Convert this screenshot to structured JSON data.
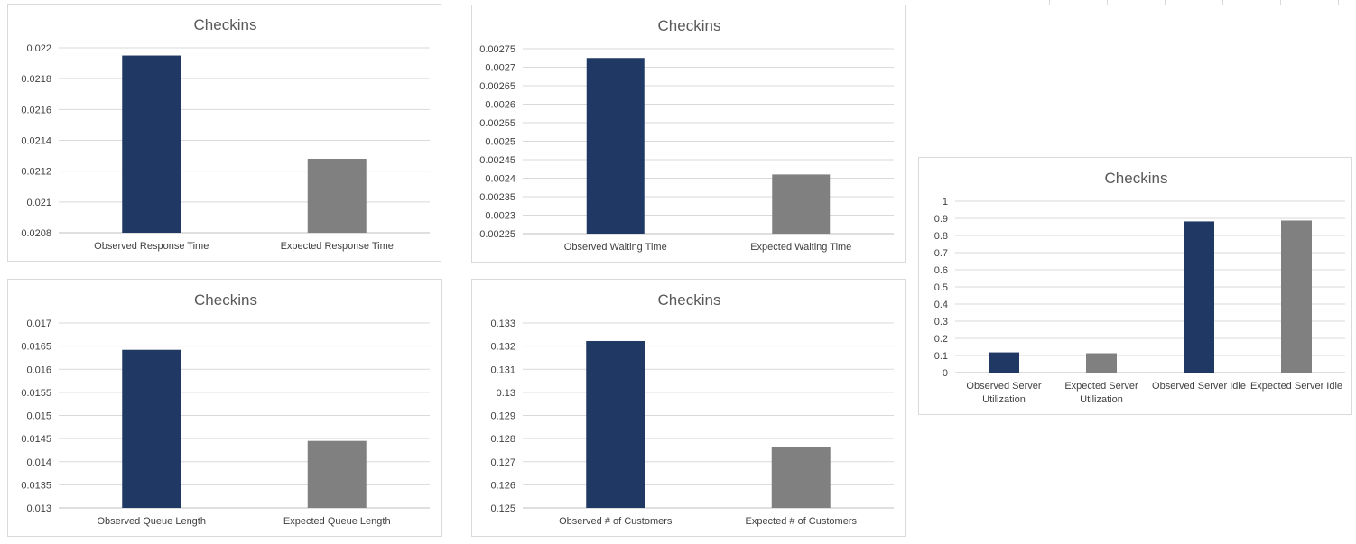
{
  "colors": {
    "observed": "#203864",
    "expected": "#808080"
  },
  "chart_data": [
    {
      "type": "bar",
      "title": "Checkins",
      "categories": [
        "Observed Response Time",
        "Expected Response Time"
      ],
      "values": [
        0.02195,
        0.02128
      ],
      "ylim": [
        0.0208,
        0.022
      ],
      "yticks": [
        "0.0208",
        "0.021",
        "0.0212",
        "0.0214",
        "0.0216",
        "0.0218",
        "0.022"
      ],
      "grid": true
    },
    {
      "type": "bar",
      "title": "Checkins",
      "categories": [
        "Observed Waiting Time",
        "Expected Waiting Time"
      ],
      "values": [
        0.002725,
        0.00241
      ],
      "ylim": [
        0.00225,
        0.00275
      ],
      "yticks": [
        "0.00225",
        "0.0023",
        "0.00235",
        "0.0024",
        "0.00245",
        "0.0025",
        "0.00255",
        "0.0026",
        "0.00265",
        "0.0027",
        "0.00275"
      ],
      "grid": true
    },
    {
      "type": "bar",
      "title": "Checkins",
      "categories": [
        "Observed Queue Length",
        "Expected Queue Length"
      ],
      "values": [
        0.01642,
        0.01445
      ],
      "ylim": [
        0.013,
        0.017
      ],
      "yticks": [
        "0.013",
        "0.0135",
        "0.014",
        "0.0145",
        "0.015",
        "0.0155",
        "0.016",
        "0.0165",
        "0.017"
      ],
      "grid": true
    },
    {
      "type": "bar",
      "title": "Checkins",
      "categories": [
        "Observed  # of Customers",
        "Expected # of Customers"
      ],
      "values": [
        0.13222,
        0.12765
      ],
      "ylim": [
        0.125,
        0.133
      ],
      "yticks": [
        "0.125",
        "0.126",
        "0.127",
        "0.128",
        "0.129",
        "0.13",
        "0.131",
        "0.132",
        "0.133"
      ],
      "grid": true
    },
    {
      "type": "bar",
      "title": "Checkins",
      "categories": [
        [
          "Observed  Server",
          "Utilization"
        ],
        [
          "Expected Server",
          "Utilization"
        ],
        [
          "Observed Server Idle"
        ],
        [
          "Expected Server Idle"
        ]
      ],
      "values": [
        0.118,
        0.113,
        0.882,
        0.887
      ],
      "ylim": [
        0,
        1
      ],
      "yticks": [
        "0",
        "0.1",
        "0.2",
        "0.3",
        "0.4",
        "0.5",
        "0.6",
        "0.7",
        "0.8",
        "0.9",
        "1"
      ],
      "grid": true
    }
  ]
}
